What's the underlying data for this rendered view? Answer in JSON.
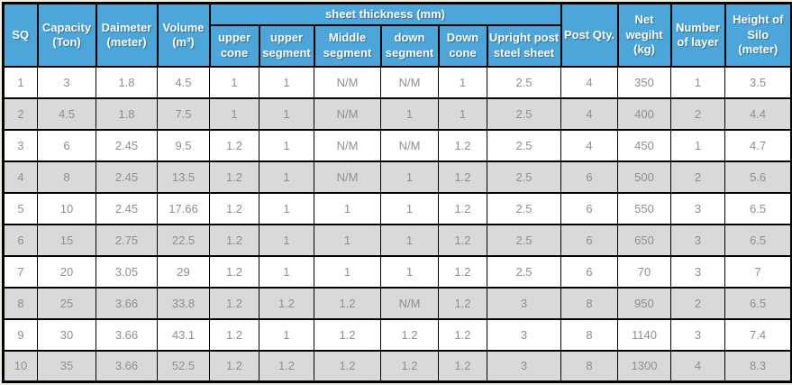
{
  "colors": {
    "header_bg": "#4DA6D9",
    "header_text": "#FFFFFF",
    "row_odd_bg": "#FFFFFF",
    "row_even_bg": "#D9D9D9",
    "cell_text": "#8F8F8F",
    "border": "#000000",
    "page_bg": "#EFEFDE"
  },
  "table": {
    "headers": {
      "sq": "SQ",
      "capacity": "Capacity\n(Ton)",
      "diameter": "Daimeter\n(meter)",
      "volume": "Volume\n(m³)",
      "sheet_thickness": "sheet thickness (mm)",
      "sheet_sub": [
        "upper\ncone",
        "upper\nsegment",
        "Middle\nsegment",
        "down\nsegment",
        "Down\ncone",
        "Upright post\nsteel sheet"
      ],
      "post_qty": "Post Qty.",
      "net_weight": "Net\nwegiht\n(kg)",
      "layers": "Number\nof layer",
      "height": "Height of\nSilo\n(meter)"
    },
    "rows": [
      [
        "1",
        "3",
        "1.8",
        "4.5",
        "1",
        "1",
        "N/M",
        "N/M",
        "1",
        "2.5",
        "4",
        "350",
        "1",
        "3.5"
      ],
      [
        "2",
        "4.5",
        "1.8",
        "7.5",
        "1",
        "1",
        "N/M",
        "1",
        "1",
        "2.5",
        "4",
        "400",
        "2",
        "4.4"
      ],
      [
        "3",
        "6",
        "2.45",
        "9.5",
        "1.2",
        "1",
        "N/M",
        "N/M",
        "1.2",
        "2.5",
        "4",
        "450",
        "1",
        "4.7"
      ],
      [
        "4",
        "8",
        "2.45",
        "13.5",
        "1.2",
        "1",
        "N/M",
        "1",
        "1.2",
        "2.5",
        "6",
        "500",
        "2",
        "5.6"
      ],
      [
        "5",
        "10",
        "2.45",
        "17.66",
        "1.2",
        "1",
        "1",
        "1",
        "1.2",
        "2.5",
        "6",
        "550",
        "3",
        "6.5"
      ],
      [
        "6",
        "15",
        "2.75",
        "22.5",
        "1.2",
        "1",
        "1",
        "1",
        "1.2",
        "2.5",
        "6",
        "650",
        "3",
        "6.5"
      ],
      [
        "7",
        "20",
        "3.05",
        "29",
        "1.2",
        "1",
        "1",
        "1",
        "1.2",
        "2.5",
        "6",
        "70",
        "3",
        "7"
      ],
      [
        "8",
        "25",
        "3.66",
        "33.8",
        "1.2",
        "1.2",
        "1.2",
        "N/M",
        "1.2",
        "3",
        "8",
        "950",
        "2",
        "6.5"
      ],
      [
        "9",
        "30",
        "3.66",
        "43.1",
        "1.2",
        "1",
        "1.2",
        "1.2",
        "1.2",
        "3",
        "8",
        "1140",
        "3",
        "7.4"
      ],
      [
        "10",
        "35",
        "3.66",
        "52.5",
        "1.2",
        "1.2",
        "1.2",
        "1.2",
        "1.2",
        "3",
        "8",
        "1300",
        "4",
        "8.3"
      ]
    ]
  }
}
